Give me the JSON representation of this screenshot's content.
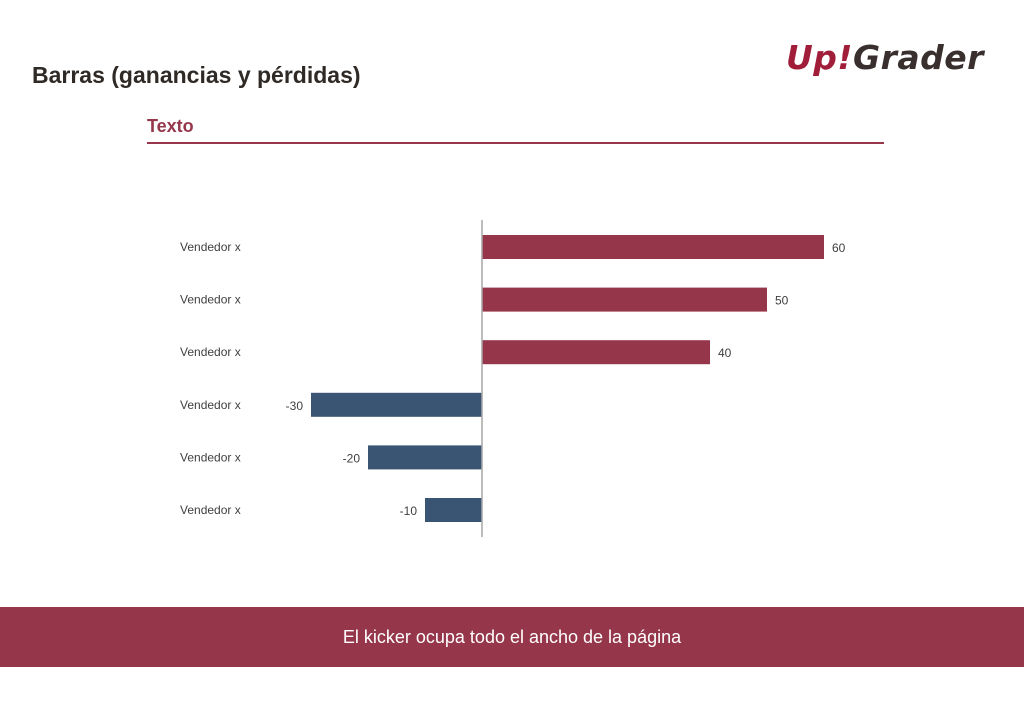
{
  "header": {
    "title": "Barras (ganancias y pérdidas)",
    "logo_part1": "Up",
    "logo_part2": "!",
    "logo_part3": "Grader"
  },
  "section": {
    "subtitle": "Texto"
  },
  "colors": {
    "positive": "#96364a",
    "negative": "#3a5573",
    "accent": "#96364a",
    "axis": "#a6a6a6",
    "text": "#3f3f3f"
  },
  "chart_data": {
    "type": "bar",
    "orientation": "horizontal",
    "categories": [
      "Vendedor x",
      "Vendedor x",
      "Vendedor x",
      "Vendedor x",
      "Vendedor x",
      "Vendedor x"
    ],
    "values": [
      60,
      50,
      40,
      -30,
      -20,
      -10
    ],
    "value_labels": [
      "60",
      "50",
      "40",
      "-30",
      "-20",
      "-10"
    ],
    "xlim": [
      -30,
      60
    ],
    "grid": false,
    "legend": "none"
  },
  "footer": {
    "kicker": "El kicker ocupa todo el ancho de la página"
  }
}
